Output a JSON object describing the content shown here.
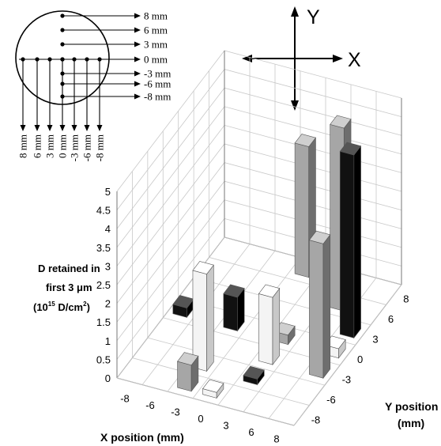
{
  "diagram": {
    "y_positions": [
      "8 mm",
      "6 mm",
      "3 mm",
      "0 mm",
      "-3 mm",
      "-6 mm",
      "-8 mm"
    ],
    "x_positions": [
      "8 mm",
      "6 mm",
      "3 mm",
      "0 mm",
      "-3 mm",
      "-6 mm",
      "-8 mm"
    ],
    "axis_y": "Y",
    "axis_x": "X"
  },
  "chart_data": {
    "type": "bar",
    "subtype": "3d-bar",
    "zlabel_lines": [
      "D retained in",
      "first 3 μm",
      "(10",
      "15",
      " D/cm",
      "2",
      ")"
    ],
    "xlabel": "X position (mm)",
    "ylabel_lines": [
      "Y position",
      "(mm)"
    ],
    "x_ticks": [
      "-8",
      "-6",
      "-3",
      "0",
      "3",
      "6",
      "8"
    ],
    "y_ticks": [
      "8",
      "6",
      "3",
      "0",
      "-3",
      "-6",
      "-8"
    ],
    "z_ticks": [
      "0",
      "0.5",
      "1",
      "1.5",
      "2",
      "2.5",
      "3",
      "3.5",
      "4",
      "4.5",
      "5"
    ],
    "zlim": [
      0,
      5
    ],
    "colors": {
      "black_group": "#111111",
      "gray_group": "#a6a6a6",
      "white_group": "#f2f2f2"
    },
    "bars": [
      {
        "x": "0",
        "y": "8",
        "value": 3.5,
        "color": "gray"
      },
      {
        "x": "6",
        "y": "6",
        "value": 4.9,
        "color": "gray"
      },
      {
        "x": "8",
        "y": "3",
        "value": 4.9,
        "color": "black"
      },
      {
        "x": "-8",
        "y": "0",
        "value": 0.25,
        "color": "black"
      },
      {
        "x": "-3",
        "y": "0",
        "value": 0.9,
        "color": "black"
      },
      {
        "x": "3",
        "y": "0",
        "value": 0.25,
        "color": "gray"
      },
      {
        "x": "8",
        "y": "0",
        "value": 0.25,
        "color": "white"
      },
      {
        "x": "3",
        "y": "-3",
        "value": 1.8,
        "color": "white"
      },
      {
        "x": "8",
        "y": "-3",
        "value": 3.6,
        "color": "gray"
      },
      {
        "x": "-3",
        "y": "-6",
        "value": 2.6,
        "color": "white"
      },
      {
        "x": "3",
        "y": "-6",
        "value": 0.15,
        "color": "black"
      },
      {
        "x": "0",
        "y": "-8",
        "value": 0.15,
        "color": "white"
      },
      {
        "x": "-3",
        "y": "-8",
        "value": 0.7,
        "color": "gray"
      }
    ]
  }
}
